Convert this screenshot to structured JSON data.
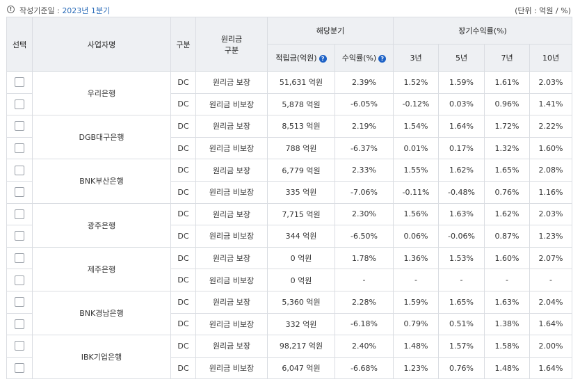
{
  "basis": {
    "icon": "info-icon",
    "label": "작성기준일 : ",
    "value": "2023년 1분기"
  },
  "unit": "(단위 : 억원 / %)",
  "headers": {
    "select": "선택",
    "company": "사업자명",
    "type": "구분",
    "principal_l1": "원리금",
    "principal_l2": "구분",
    "quarter": "해당분기",
    "reserve": "적립금(억원)",
    "return_rate": "수익률(%)",
    "longterm": "장기수익률(%)",
    "y3": "3년",
    "y5": "5년",
    "y7": "7년",
    "y10": "10년"
  },
  "help_icon": "question-icon",
  "colors": {
    "accent": "#2a6bb8",
    "help": "#1e62c6",
    "header_bg": "#eef0f3"
  },
  "rows": [
    {
      "company": "우리은행",
      "items": [
        {
          "type": "DC",
          "principal": "원리금 보장",
          "reserve": "51,631 억원",
          "rate": "2.39%",
          "y3": "1.52%",
          "y5": "1.59%",
          "y7": "1.61%",
          "y10": "2.03%"
        },
        {
          "type": "DC",
          "principal": "원리금 비보장",
          "reserve": "5,878 억원",
          "rate": "-6.05%",
          "y3": "-0.12%",
          "y5": "0.03%",
          "y7": "0.96%",
          "y10": "1.41%"
        }
      ]
    },
    {
      "company": "DGB대구은행",
      "items": [
        {
          "type": "DC",
          "principal": "원리금 보장",
          "reserve": "8,513 억원",
          "rate": "2.19%",
          "y3": "1.54%",
          "y5": "1.64%",
          "y7": "1.72%",
          "y10": "2.22%"
        },
        {
          "type": "DC",
          "principal": "원리금 비보장",
          "reserve": "788 억원",
          "rate": "-6.37%",
          "y3": "0.01%",
          "y5": "0.17%",
          "y7": "1.32%",
          "y10": "1.60%"
        }
      ]
    },
    {
      "company": "BNK부산은행",
      "items": [
        {
          "type": "DC",
          "principal": "원리금 보장",
          "reserve": "6,779 억원",
          "rate": "2.33%",
          "y3": "1.55%",
          "y5": "1.62%",
          "y7": "1.65%",
          "y10": "2.08%"
        },
        {
          "type": "DC",
          "principal": "원리금 비보장",
          "reserve": "335 억원",
          "rate": "-7.06%",
          "y3": "-0.11%",
          "y5": "-0.48%",
          "y7": "0.76%",
          "y10": "1.16%"
        }
      ]
    },
    {
      "company": "광주은행",
      "items": [
        {
          "type": "DC",
          "principal": "원리금 보장",
          "reserve": "7,715 억원",
          "rate": "2.30%",
          "y3": "1.56%",
          "y5": "1.63%",
          "y7": "1.62%",
          "y10": "2.03%"
        },
        {
          "type": "DC",
          "principal": "원리금 비보장",
          "reserve": "344 억원",
          "rate": "-6.50%",
          "y3": "0.06%",
          "y5": "-0.06%",
          "y7": "0.87%",
          "y10": "1.23%"
        }
      ]
    },
    {
      "company": "제주은행",
      "items": [
        {
          "type": "DC",
          "principal": "원리금 보장",
          "reserve": "0 억원",
          "rate": "1.78%",
          "y3": "1.36%",
          "y5": "1.53%",
          "y7": "1.60%",
          "y10": "2.07%"
        },
        {
          "type": "DC",
          "principal": "원리금 비보장",
          "reserve": "0 억원",
          "rate": "-",
          "y3": "-",
          "y5": "-",
          "y7": "-",
          "y10": "-"
        }
      ]
    },
    {
      "company": "BNK경남은행",
      "items": [
        {
          "type": "DC",
          "principal": "원리금 보장",
          "reserve": "5,360 억원",
          "rate": "2.28%",
          "y3": "1.59%",
          "y5": "1.65%",
          "y7": "1.63%",
          "y10": "2.04%"
        },
        {
          "type": "DC",
          "principal": "원리금 비보장",
          "reserve": "332 억원",
          "rate": "-6.18%",
          "y3": "0.79%",
          "y5": "0.51%",
          "y7": "1.38%",
          "y10": "1.64%"
        }
      ]
    },
    {
      "company": "IBK기업은행",
      "items": [
        {
          "type": "DC",
          "principal": "원리금 보장",
          "reserve": "98,217 억원",
          "rate": "2.40%",
          "y3": "1.48%",
          "y5": "1.57%",
          "y7": "1.58%",
          "y10": "2.00%"
        },
        {
          "type": "DC",
          "principal": "원리금 비보장",
          "reserve": "6,047 억원",
          "rate": "-6.68%",
          "y3": "1.23%",
          "y5": "0.76%",
          "y7": "1.48%",
          "y10": "1.64%"
        }
      ]
    }
  ]
}
